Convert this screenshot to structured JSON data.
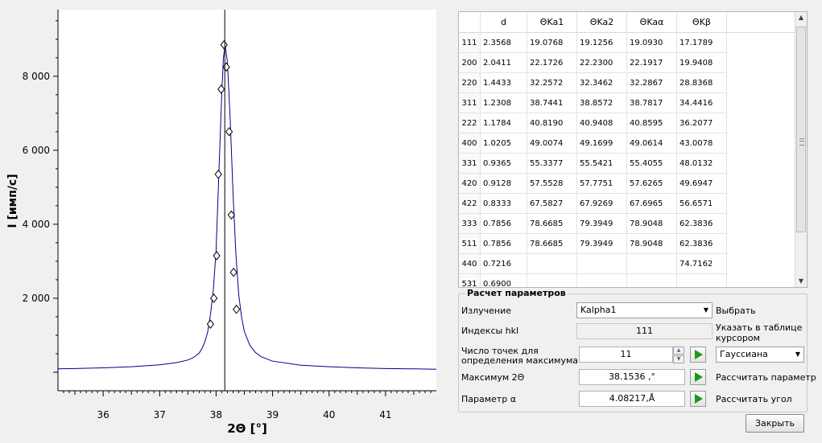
{
  "chart_data": {
    "type": "line",
    "xlabel": "2Θ [°]",
    "ylabel": "I [имп/с]",
    "xlim": [
      35.2,
      41.9
    ],
    "ylim": [
      -500,
      9800
    ],
    "xticks": [
      36,
      37,
      38,
      39,
      40,
      41
    ],
    "yticks": [
      2000,
      4000,
      6000,
      8000
    ],
    "ytick_labels": [
      "2 000",
      "4 000",
      "6 000",
      "8 000"
    ],
    "grid": false,
    "line_color": "#00008b",
    "series": [
      {
        "x": [
          35.2,
          35.5,
          36.0,
          36.5,
          37.0,
          37.3,
          37.5,
          37.6,
          37.7,
          37.75,
          37.8,
          37.85,
          37.9,
          37.95,
          38.0,
          38.05,
          38.1,
          38.13,
          38.16,
          38.2,
          38.25,
          38.3,
          38.35,
          38.4,
          38.45,
          38.5,
          38.6,
          38.7,
          38.8,
          39.0,
          39.5,
          40.0,
          40.5,
          41.0,
          41.5,
          41.9
        ],
        "y": [
          90,
          100,
          120,
          150,
          200,
          260,
          330,
          400,
          520,
          640,
          820,
          1080,
          1560,
          2200,
          3300,
          5400,
          7500,
          8500,
          8850,
          8400,
          6800,
          4800,
          3200,
          2100,
          1500,
          1100,
          720,
          530,
          420,
          300,
          190,
          150,
          120,
          100,
          90,
          80
        ]
      }
    ],
    "markers": {
      "x": [
        37.9,
        37.96,
        38.01,
        38.04,
        38.09,
        38.14,
        38.18,
        38.23,
        38.27,
        38.31,
        38.36
      ],
      "y": [
        1300,
        2000,
        3150,
        5350,
        7650,
        8850,
        8250,
        6500,
        4250,
        2700,
        1700
      ]
    },
    "cursor_x": 38.1536
  },
  "table": {
    "headers": [
      "d",
      "ΘKa1",
      "ΘKa2",
      "ΘKaα",
      "ΘKβ"
    ],
    "rows": [
      {
        "hkl": "111",
        "d": "2.3568",
        "ka1": "19.0768",
        "ka2": "19.1256",
        "kaa": "19.0930",
        "kb": "17.1789"
      },
      {
        "hkl": "200",
        "d": "2.0411",
        "ka1": "22.1726",
        "ka2": "22.2300",
        "kaa": "22.1917",
        "kb": "19.9408"
      },
      {
        "hkl": "220",
        "d": "1.4433",
        "ka1": "32.2572",
        "ka2": "32.3462",
        "kaa": "32.2867",
        "kb": "28.8368"
      },
      {
        "hkl": "311",
        "d": "1.2308",
        "ka1": "38.7441",
        "ka2": "38.8572",
        "kaa": "38.7817",
        "kb": "34.4416"
      },
      {
        "hkl": "222",
        "d": "1.1784",
        "ka1": "40.8190",
        "ka2": "40.9408",
        "kaa": "40.8595",
        "kb": "36.2077"
      },
      {
        "hkl": "400",
        "d": "1.0205",
        "ka1": "49.0074",
        "ka2": "49.1699",
        "kaa": "49.0614",
        "kb": "43.0078"
      },
      {
        "hkl": "331",
        "d": "0.9365",
        "ka1": "55.3377",
        "ka2": "55.5421",
        "kaa": "55.4055",
        "kb": "48.0132"
      },
      {
        "hkl": "420",
        "d": "0.9128",
        "ka1": "57.5528",
        "ka2": "57.7751",
        "kaa": "57.6265",
        "kb": "49.6947"
      },
      {
        "hkl": "422",
        "d": "0.8333",
        "ka1": "67.5827",
        "ka2": "67.9269",
        "kaa": "67.6965",
        "kb": "56.6571"
      },
      {
        "hkl": "333",
        "d": "0.7856",
        "ka1": "78.6685",
        "ka2": "79.3949",
        "kaa": "78.9048",
        "kb": "62.3836"
      },
      {
        "hkl": "511",
        "d": "0.7856",
        "ka1": "78.6685",
        "ka2": "79.3949",
        "kaa": "78.9048",
        "kb": "62.3836"
      },
      {
        "hkl": "440",
        "d": "0.7216",
        "ka1": "",
        "ka2": "",
        "kaa": "",
        "kb": "74.7162"
      },
      {
        "hkl": "531",
        "d": "0.6900",
        "ka1": "",
        "ka2": "",
        "kaa": "",
        "kb": ""
      }
    ]
  },
  "params": {
    "title": "Расчет параметров",
    "radiation_label": "Излучение",
    "radiation_value": "Kalpha1",
    "select_label": "Выбрать",
    "hkl_label": "Индексы hkl",
    "hkl_value": "111",
    "hint_line1": "Указать в таблице",
    "hint_line2": "курсором",
    "points_label_line1": "Число точек для",
    "points_label_line2": "определения максимума",
    "points_value": "11",
    "fit_value": "Гауссиана",
    "max_label": "Максимум 2Θ",
    "max_value": "38.1536 ,°",
    "calc_param_label": "Рассчитать параметр",
    "param_label": "Параметр α",
    "param_value": "4.08217,Å",
    "calc_angle_label": "Рассчитать угол",
    "close_label": "Закрыть"
  }
}
